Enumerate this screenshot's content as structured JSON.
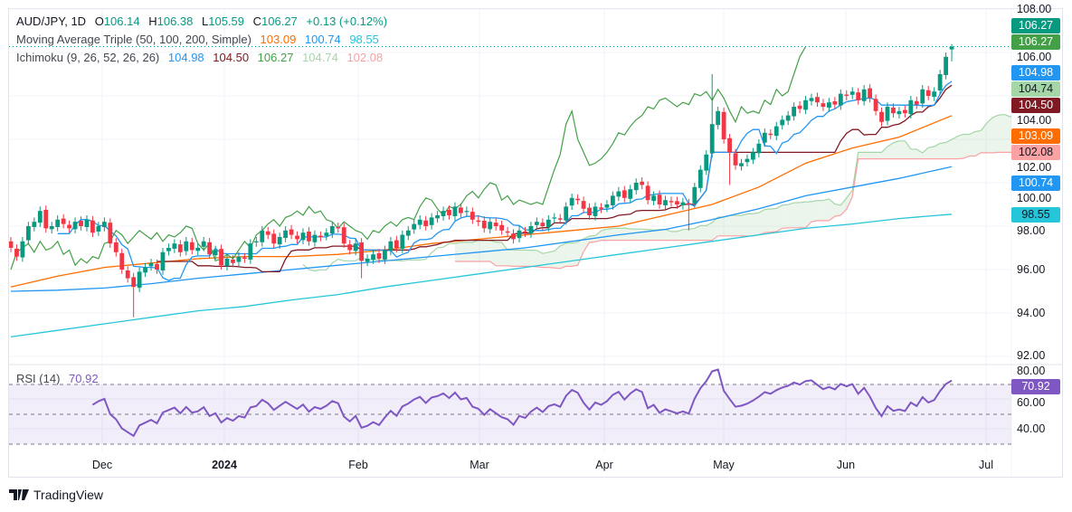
{
  "header": {
    "symbol": "AUD/JPY, 1D",
    "open_label": "O",
    "open": "106.14",
    "high_label": "H",
    "high": "106.38",
    "low_label": "L",
    "low": "105.59",
    "close_label": "C",
    "close": "106.27",
    "change": "+0.13 (+0.12%)"
  },
  "indicators": {
    "ma_title": "Moving Average Triple (50, 100, 200, Simple)",
    "ma_values": [
      "103.09",
      "100.74",
      "98.55"
    ],
    "ichimoku_title": "Ichimoku (9, 26, 52, 26, 26)",
    "ichimoku_values": [
      "104.98",
      "104.50",
      "106.27",
      "104.74",
      "102.08"
    ],
    "rsi_title": "RSI (14)",
    "rsi_value": "70.92"
  },
  "colors": {
    "up": "#089981",
    "down": "#f23645",
    "ma50": "#ff6d00",
    "ma100": "#2196f3",
    "ma200": "#26c6da",
    "tenkan": "#2196f3",
    "kijun": "#801922",
    "chikou": "#43a047",
    "span_a": "#a5d6a7",
    "span_b": "#faa1a4",
    "rsi": "#7e57c2"
  },
  "price_axis": {
    "ticks": [
      "108.00",
      "106.00",
      "104.00",
      "102.00",
      "100.00",
      "98.00",
      "96.00",
      "94.00",
      "92.00"
    ]
  },
  "rsi_axis": {
    "ticks": [
      "80.00",
      "60.00",
      "40.00"
    ]
  },
  "time_axis": {
    "labels": [
      "Dec",
      "2024",
      "Feb",
      "Mar",
      "Apr",
      "May",
      "Jun",
      "Jul"
    ]
  },
  "price_badges": [
    "106.27",
    "106.27",
    "104.98",
    "104.74",
    "104.50",
    "103.09",
    "102.08",
    "100.74",
    "98.55"
  ],
  "rsi_badge": "70.92",
  "branding": "TradingView",
  "chart_data": {
    "type": "candlestick",
    "ylim": [
      92,
      108
    ],
    "rsi_ylim": [
      30,
      80
    ],
    "rsi_levels": [
      70,
      50,
      30
    ],
    "grid": true,
    "close": [
      97.0,
      96.6,
      97.3,
      98.0,
      98.2,
      98.7,
      97.9,
      98.0,
      98.3,
      98.1,
      97.9,
      98.2,
      98.0,
      98.3,
      97.7,
      98.0,
      98.2,
      97.2,
      96.8,
      96.0,
      95.6,
      95.2,
      95.9,
      96.1,
      96.3,
      96.0,
      96.8,
      97.0,
      97.2,
      96.8,
      97.3,
      96.9,
      97.0,
      97.3,
      96.7,
      96.9,
      96.2,
      96.5,
      96.3,
      96.6,
      96.5,
      97.2,
      97.3,
      97.8,
      97.6,
      97.2,
      97.5,
      97.8,
      97.6,
      97.4,
      97.7,
      97.3,
      97.6,
      97.5,
      97.7,
      98.0,
      97.9,
      97.2,
      96.9,
      97.2,
      96.4,
      96.5,
      96.7,
      96.5,
      96.9,
      97.3,
      97.0,
      97.6,
      97.8,
      98.1,
      98.3,
      98.0,
      98.4,
      98.5,
      98.7,
      98.5,
      98.9,
      98.6,
      98.7,
      98.3,
      98.2,
      97.9,
      98.2,
      98.0,
      97.8,
      97.7,
      97.4,
      97.8,
      97.7,
      98.0,
      98.2,
      98.0,
      98.3,
      98.4,
      98.3,
      98.9,
      99.3,
      99.2,
      98.8,
      98.5,
      98.9,
      98.8,
      99.0,
      99.4,
      99.6,
      99.3,
      99.7,
      100.0,
      99.9,
      99.2,
      99.4,
      99.0,
      99.2,
      99.1,
      99.0,
      99.1,
      99.0,
      99.8,
      100.6,
      101.3,
      102.7,
      103.3,
      102.0,
      101.4,
      100.8,
      100.9,
      101.1,
      101.4,
      101.8,
      102.3,
      102.2,
      102.6,
      102.9,
      103.1,
      103.5,
      103.4,
      103.8,
      103.9,
      103.7,
      103.5,
      103.7,
      103.6,
      104.1,
      104.0,
      104.2,
      103.8,
      104.3,
      103.9,
      103.3,
      102.8,
      103.5,
      103.2,
      103.3,
      103.2,
      103.8,
      103.6,
      104.3,
      104.0,
      104.2,
      105.0,
      105.8,
      106.27
    ],
    "last_candle": {
      "open": 106.14,
      "high": 106.38,
      "low": 105.59,
      "close": 106.27
    },
    "notable_wicks": [
      {
        "candle": 21,
        "low": 93.8
      },
      {
        "candle": 60,
        "low": 95.6
      },
      {
        "candle": 116,
        "low": 97.8
      },
      {
        "candle": 120,
        "high": 105.0
      },
      {
        "candle": 123,
        "low": 99.9
      }
    ],
    "ma50": [
      95.2,
      95.7,
      96.1,
      96.3,
      96.5,
      96.6,
      96.6,
      96.7,
      96.9,
      97.2,
      97.4,
      97.6,
      97.8,
      98.0,
      98.5,
      99.0,
      99.8,
      100.9,
      101.6,
      102.1,
      103.09
    ],
    "ma100": [
      95.0,
      95.05,
      95.15,
      95.35,
      95.6,
      95.8,
      96.0,
      96.2,
      96.4,
      96.6,
      96.8,
      97.0,
      97.3,
      97.6,
      97.85,
      98.3,
      98.8,
      99.4,
      99.8,
      100.2,
      100.74
    ],
    "ma200": [
      92.9,
      93.2,
      93.5,
      93.8,
      94.1,
      94.3,
      94.6,
      94.85,
      95.2,
      95.5,
      95.8,
      96.1,
      96.4,
      96.7,
      97.0,
      97.3,
      97.6,
      97.9,
      98.1,
      98.35,
      98.55
    ]
  }
}
